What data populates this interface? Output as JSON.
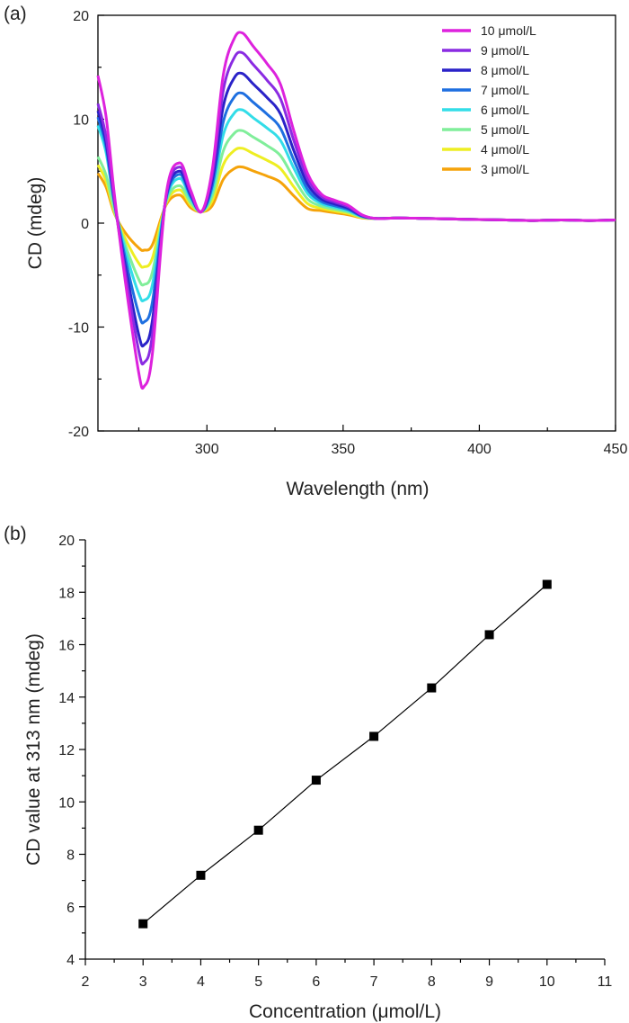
{
  "chart_data": [
    {
      "panel_label": "(a)",
      "type": "line",
      "xlabel": "Wavelength (nm)",
      "ylabel": "CD (mdeg)",
      "xlim": [
        260,
        450
      ],
      "ylim": [
        -20,
        20
      ],
      "xticks": [
        "300",
        "350",
        "400",
        "450"
      ],
      "yticks": [
        "-20",
        "-10",
        "0",
        "10",
        "20"
      ],
      "grid": false,
      "legend": "top-right",
      "x": [
        260,
        263,
        266,
        270,
        275,
        277,
        280,
        285,
        290,
        294,
        298,
        302,
        306,
        310,
        313,
        317,
        322,
        327,
        332,
        337,
        342,
        347,
        352,
        357,
        362,
        370,
        380,
        390,
        400,
        410,
        420,
        430,
        440,
        450
      ],
      "series": [
        {
          "name": "10 μmol/L",
          "color": "#dd22dd",
          "peak": 18.3,
          "trough": -15.7,
          "start": 14.2,
          "shoulder": 5.8
        },
        {
          "name": "9 μmol/L",
          "color": "#8a2be2",
          "peak": 16.4,
          "trough": -13.4,
          "start": 11.5,
          "shoulder": 5.4
        },
        {
          "name": "8 μmol/L",
          "color": "#2a22c8",
          "peak": 14.4,
          "trough": -11.7,
          "start": 10.8,
          "shoulder": 5.0
        },
        {
          "name": "7 μmol/L",
          "color": "#1e6fe0",
          "peak": 12.5,
          "trough": -9.5,
          "start": 10.2,
          "shoulder": 4.7
        },
        {
          "name": "6 μmol/L",
          "color": "#33dde8",
          "peak": 10.9,
          "trough": -7.4,
          "start": 9.4,
          "shoulder": 4.3
        },
        {
          "name": "5 μmol/L",
          "color": "#80ee9a",
          "peak": 8.9,
          "trough": -5.9,
          "start": 6.4,
          "shoulder": 3.6
        },
        {
          "name": "4 μmol/L",
          "color": "#eeee22",
          "peak": 7.2,
          "trough": -4.2,
          "start": 5.6,
          "shoulder": 3.2
        },
        {
          "name": "3 μmol/L",
          "color": "#f5a30a",
          "peak": 5.4,
          "trough": -2.6,
          "start": 4.8,
          "shoulder": 2.7
        }
      ]
    },
    {
      "panel_label": "(b)",
      "type": "scatter",
      "xlabel": "Concentration (μmol/L)",
      "ylabel": "CD value at 313 nm (mdeg)",
      "xlim": [
        2,
        11
      ],
      "ylim": [
        4,
        20
      ],
      "xticks": [
        "2",
        "3",
        "4",
        "5",
        "6",
        "7",
        "8",
        "9",
        "10",
        "11"
      ],
      "yticks": [
        "4",
        "6",
        "8",
        "10",
        "12",
        "14",
        "16",
        "18",
        "20"
      ],
      "grid": false,
      "connected": true,
      "marker": "square",
      "color": "#000000",
      "x": [
        3,
        4,
        5,
        6,
        7,
        8,
        9,
        10
      ],
      "y": [
        5.35,
        7.2,
        8.92,
        10.83,
        12.5,
        14.35,
        16.38,
        18.3
      ]
    }
  ]
}
